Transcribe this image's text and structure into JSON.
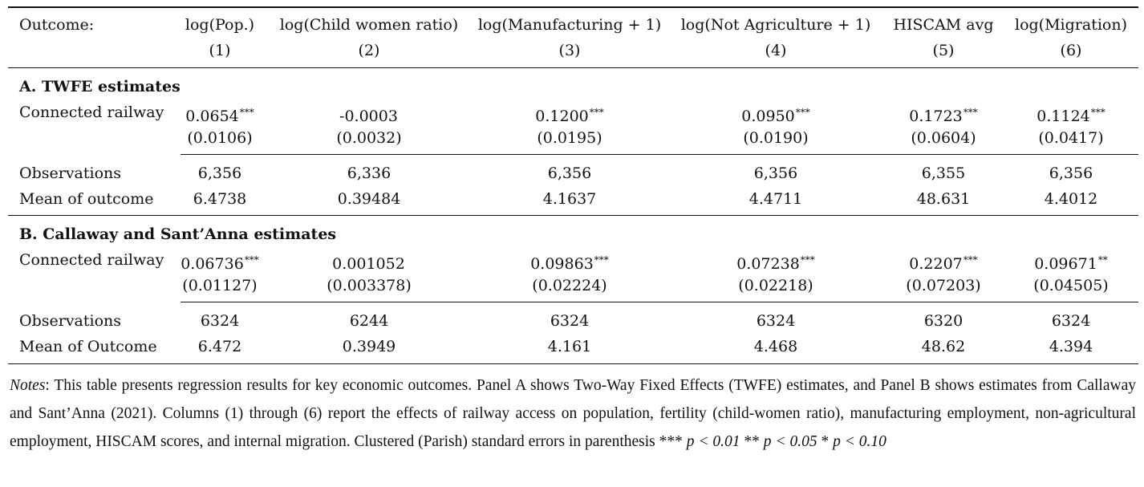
{
  "header": {
    "outcome_label": "Outcome:",
    "columns": [
      {
        "name": "log(Pop.)",
        "num": "(1)"
      },
      {
        "name": "log(Child women ratio)",
        "num": "(2)"
      },
      {
        "name": "log(Manufacturing + 1)",
        "num": "(3)"
      },
      {
        "name": "log(Not Agriculture + 1)",
        "num": "(4)"
      },
      {
        "name": "HISCAM avg",
        "num": "(5)"
      },
      {
        "name": "log(Migration)",
        "num": "(6)"
      }
    ]
  },
  "panelA": {
    "title": "A. TWFE estimates",
    "row_label": "Connected railway",
    "coef": [
      "0.0654",
      "-0.0003",
      "0.1200",
      "0.0950",
      "0.1723",
      "0.1124"
    ],
    "stars": [
      "***",
      "",
      "***",
      "***",
      "***",
      "***"
    ],
    "se": [
      "(0.0106)",
      "(0.0032)",
      "(0.0195)",
      "(0.0190)",
      "(0.0604)",
      "(0.0417)"
    ],
    "obs_label": "Observations",
    "obs": [
      "6,356",
      "6,336",
      "6,356",
      "6,356",
      "6,355",
      "6,356"
    ],
    "mean_label": "Mean of outcome",
    "mean": [
      "6.4738",
      "0.39484",
      "4.1637",
      "4.4711",
      "48.631",
      "4.4012"
    ]
  },
  "panelB": {
    "title": "B. Callaway and Sant’Anna estimates",
    "row_label": "Connected railway",
    "coef": [
      "0.06736",
      "0.001052",
      "0.09863",
      "0.07238",
      "0.2207",
      "0.09671"
    ],
    "stars": [
      "***",
      "",
      "***",
      "***",
      "***",
      "**"
    ],
    "se": [
      "(0.01127)",
      "(0.003378)",
      "(0.02224)",
      "(0.02218)",
      "(0.07203)",
      "(0.04505)"
    ],
    "obs_label": "Observations",
    "obs": [
      "6324",
      "6244",
      "6324",
      "6324",
      "6320",
      "6324"
    ],
    "mean_label": "Mean of Outcome",
    "mean": [
      "6.472",
      "0.3949",
      "4.161",
      "4.468",
      "48.62",
      "4.394"
    ]
  },
  "notes": {
    "label": "Notes",
    "text": ": This table presents regression results for key economic outcomes. Panel A shows Two-Way Fixed Effects (TWFE) estimates, and Panel B shows estimates from Callaway and Sant’Anna (2021). Columns (1) through (6) report the effects of railway access on population, fertility (child-women ratio), manufacturing employment, non-agricultural employment, HISCAM scores, and internal migration. Clustered (Parish) standard errors in parenthesis *** ",
    "p1": "p < 0.01",
    "sep1": " ** ",
    "p2": "p < 0.05",
    "sep2": " * ",
    "p3": "p < 0.10"
  }
}
